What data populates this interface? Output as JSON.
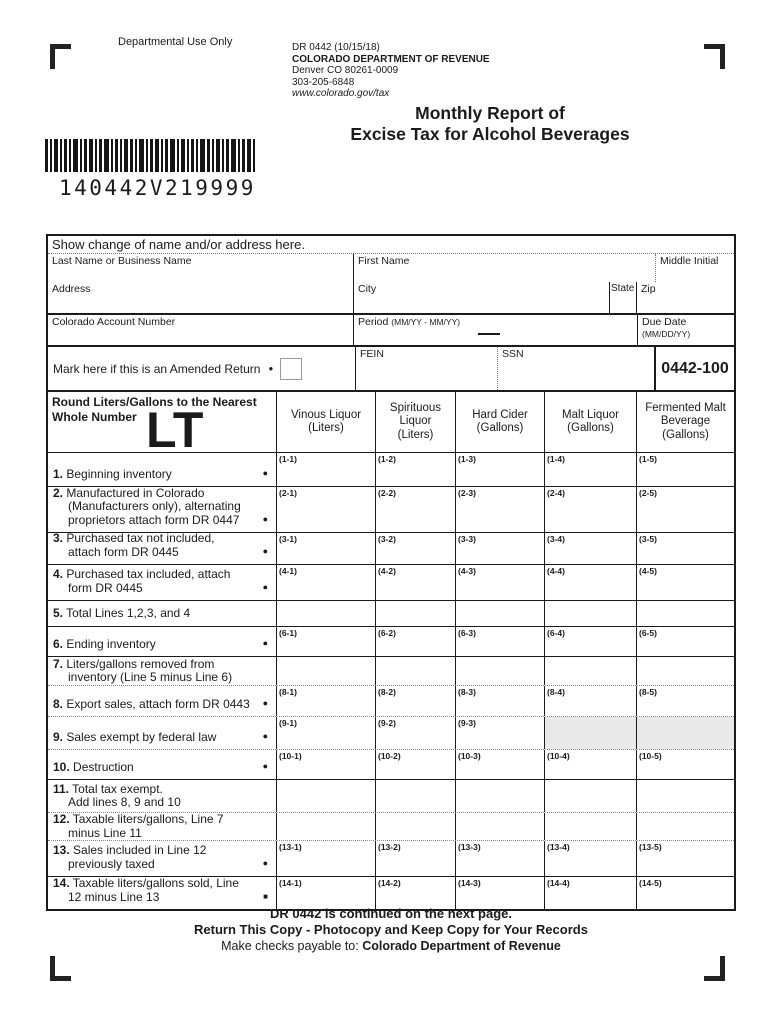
{
  "header": {
    "departmental_use": "Departmental Use Only",
    "form_code": "DR 0442 (10/15/18)",
    "agency": "COLORADO DEPARTMENT OF REVENUE",
    "agency_address": "Denver CO 80261-0009",
    "agency_phone": "303-205-6848",
    "agency_website": "www.colorado.gov/tax",
    "title_line1": "Monthly Report of",
    "title_line2": "Excise Tax for Alcohol Beverages"
  },
  "barcode": {
    "number": "140442V219999"
  },
  "info": {
    "section_title": "Show change of name and/or address here.",
    "last_name_label": "Last Name or Business Name",
    "first_name_label": "First Name",
    "middle_initial_label": "Middle Initial",
    "address_label": "Address",
    "city_label": "City",
    "state_label": "State",
    "zip_label": "Zip",
    "account_label": "Colorado Account Number",
    "period_label": "Period",
    "period_format": "(MM/YY - MM/YY)",
    "due_date_label": "Due Date",
    "due_date_format": "(MM/DD/YY)",
    "amended_label": "Mark here if this is an Amended Return",
    "fein_label": "FEIN",
    "ssn_label": "SSN",
    "form_number": "0442-100"
  },
  "table": {
    "round_note_line1": "Round Liters/Gallons to the Nearest",
    "round_note_line2": "Whole Number",
    "lt_mark": "LT",
    "columns": [
      {
        "lines": [
          "Vinous Liquor",
          "(Liters)"
        ]
      },
      {
        "lines": [
          "Spirituous",
          "Liquor",
          "(Liters)"
        ]
      },
      {
        "lines": [
          "Hard Cider",
          "(Gallons)"
        ]
      },
      {
        "lines": [
          "Malt Liquor",
          "(Gallons)"
        ]
      },
      {
        "lines": [
          "Fermented Malt",
          "Beverage",
          "(Gallons)"
        ]
      }
    ],
    "rows": [
      {
        "num": "1.",
        "lines": [
          "Beginning inventory"
        ],
        "marker": "dot",
        "codes": [
          "(1-1)",
          "(1-2)",
          "(1-3)",
          "(1-4)",
          "(1-5)"
        ]
      },
      {
        "num": "2.",
        "lines": [
          "Manufactured in Colorado",
          "(Manufacturers only), alternating",
          "proprietors attach form DR 0447"
        ],
        "marker": "dot",
        "codes": [
          "(2-1)",
          "(2-2)",
          "(2-3)",
          "(2-4)",
          "(2-5)"
        ]
      },
      {
        "num": "3.",
        "lines": [
          "Purchased tax not included,",
          "attach form DR 0445"
        ],
        "marker": "dot",
        "codes": [
          "(3-1)",
          "(3-2)",
          "(3-3)",
          "(3-4)",
          "(3-5)"
        ]
      },
      {
        "num": "4.",
        "lines": [
          "Purchased tax included, attach",
          "form DR 0445"
        ],
        "marker": "dot",
        "codes": [
          "(4-1)",
          "(4-2)",
          "(4-3)",
          "(4-4)",
          "(4-5)"
        ]
      },
      {
        "num": "5.",
        "lines": [
          "Total Lines 1,2,3, and 4"
        ],
        "marker": "",
        "codes": [
          "",
          "",
          "",
          "",
          ""
        ]
      },
      {
        "num": "6.",
        "lines": [
          "Ending inventory"
        ],
        "marker": "dot",
        "codes": [
          "(6-1)",
          "(6-2)",
          "(6-3)",
          "(6-4)",
          "(6-5)"
        ]
      },
      {
        "num": "7.",
        "lines": [
          "Liters/gallons removed from",
          "inventory (Line 5 minus Line 6)"
        ],
        "marker": "",
        "codes": [
          "",
          "",
          "",
          "",
          ""
        ]
      },
      {
        "num": "8.",
        "lines": [
          "Export sales, attach form DR 0443"
        ],
        "marker": "dot",
        "codes": [
          "(8-1)",
          "(8-2)",
          "(8-3)",
          "(8-4)",
          "(8-5)"
        ]
      },
      {
        "num": "9.",
        "lines": [
          "Sales exempt by federal law"
        ],
        "marker": "dot",
        "codes": [
          "(9-1)",
          "(9-2)",
          "(9-3)",
          "",
          ""
        ],
        "shaded": [
          3,
          4
        ]
      },
      {
        "num": "10.",
        "lines": [
          "Destruction"
        ],
        "marker": "dot",
        "codes": [
          "(10-1)",
          "(10-2)",
          "(10-3)",
          "(10-4)",
          "(10-5)"
        ]
      },
      {
        "num": "11.",
        "lines": [
          "Total tax exempt.",
          "Add lines 8, 9 and 10"
        ],
        "marker": "",
        "codes": [
          "",
          "",
          "",
          "",
          ""
        ]
      },
      {
        "num": "12.",
        "lines": [
          "Taxable liters/gallons, Line 7",
          "minus Line 11"
        ],
        "marker": "",
        "codes": [
          "",
          "",
          "",
          "",
          ""
        ]
      },
      {
        "num": "13.",
        "lines": [
          "Sales included in Line 12",
          "previously taxed"
        ],
        "marker": "dot",
        "codes": [
          "(13-1)",
          "(13-2)",
          "(13-3)",
          "(13-4)",
          "(13-5)"
        ]
      },
      {
        "num": "14.",
        "lines": [
          "Taxable liters/gallons sold, Line",
          "12 minus Line 13"
        ],
        "marker": "square",
        "codes": [
          "(14-1)",
          "(14-2)",
          "(14-3)",
          "(14-4)",
          "(14-5)"
        ]
      }
    ]
  },
  "footer": {
    "line1": "DR 0442 is continued on the next page.",
    "line2": "Return This Copy - Photocopy and Keep Copy for Your Records",
    "line3_prefix": "Make checks payable to:",
    "line3_bold": "Colorado Department of Revenue"
  }
}
